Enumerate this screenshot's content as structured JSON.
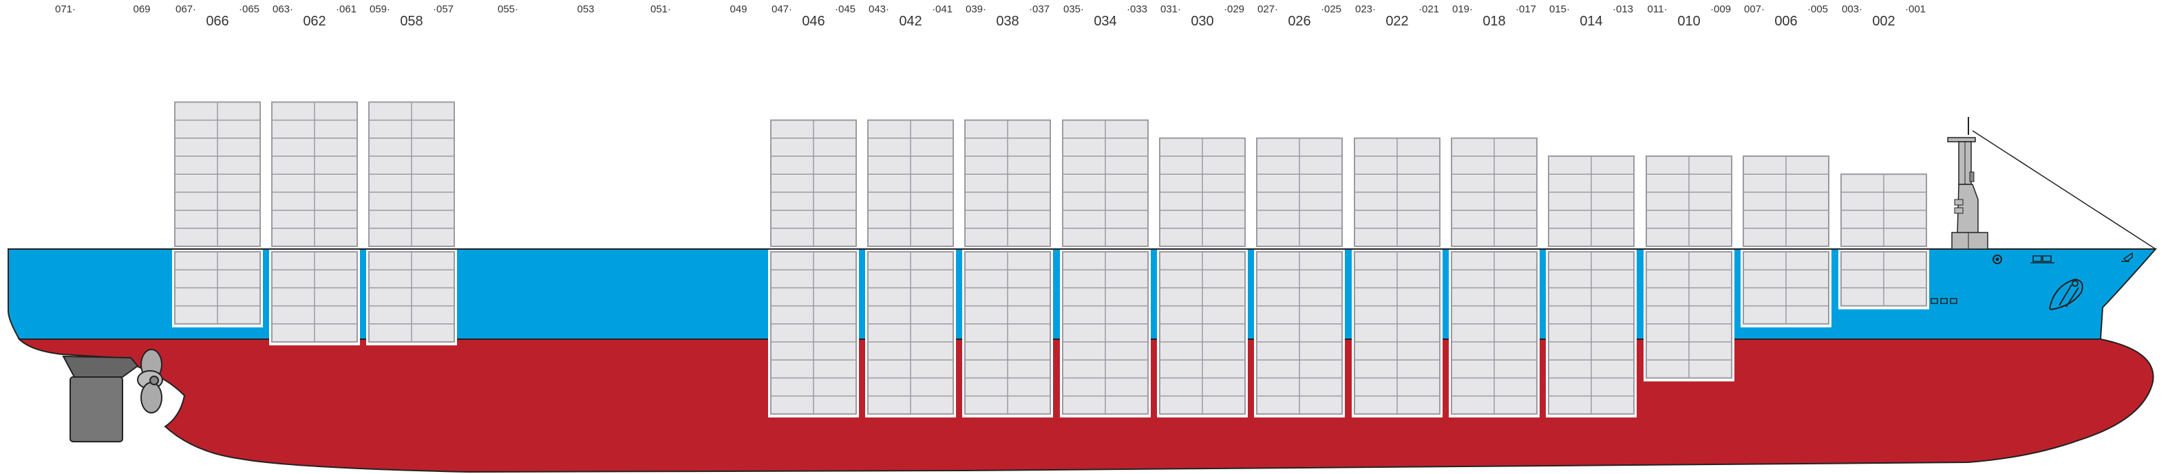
{
  "colors": {
    "hull_top": "#00a0e0",
    "hull_bottom": "#bc212b",
    "container_fill": "#e6e6e9",
    "container_line": "#9a9aa2",
    "outline": "#222222",
    "machinery": "#777777"
  },
  "bays": [
    {
      "id": "bay-066",
      "label": "066",
      "fore": "067",
      "aft": "065",
      "above_tiers": 8,
      "below_tiers": 4
    },
    {
      "id": "bay-062",
      "label": "062",
      "fore": "063",
      "aft": "061",
      "above_tiers": 8,
      "below_tiers": 5
    },
    {
      "id": "bay-058",
      "label": "058",
      "fore": "059",
      "aft": "057",
      "above_tiers": 8,
      "below_tiers": 5
    },
    {
      "id": "bay-046",
      "label": "046",
      "fore": "047",
      "aft": "045",
      "above_tiers": 7,
      "below_tiers": 9
    },
    {
      "id": "bay-042",
      "label": "042",
      "fore": "043",
      "aft": "041",
      "above_tiers": 7,
      "below_tiers": 9
    },
    {
      "id": "bay-038",
      "label": "038",
      "fore": "039",
      "aft": "037",
      "above_tiers": 7,
      "below_tiers": 9
    },
    {
      "id": "bay-034",
      "label": "034",
      "fore": "035",
      "aft": "033",
      "above_tiers": 7,
      "below_tiers": 9
    },
    {
      "id": "bay-030",
      "label": "030",
      "fore": "031",
      "aft": "029",
      "above_tiers": 6,
      "below_tiers": 9
    },
    {
      "id": "bay-026",
      "label": "026",
      "fore": "027",
      "aft": "025",
      "above_tiers": 6,
      "below_tiers": 9
    },
    {
      "id": "bay-022",
      "label": "022",
      "fore": "023",
      "aft": "021",
      "above_tiers": 6,
      "below_tiers": 9
    },
    {
      "id": "bay-018",
      "label": "018",
      "fore": "019",
      "aft": "017",
      "above_tiers": 6,
      "below_tiers": 9
    },
    {
      "id": "bay-014",
      "label": "014",
      "fore": "015",
      "aft": "013",
      "above_tiers": 5,
      "below_tiers": 9
    },
    {
      "id": "bay-010",
      "label": "010",
      "fore": "011",
      "aft": "009",
      "above_tiers": 5,
      "below_tiers": 7
    },
    {
      "id": "bay-006",
      "label": "006",
      "fore": "007",
      "aft": "005",
      "above_tiers": 5,
      "below_tiers": 4
    },
    {
      "id": "bay-002",
      "label": "002",
      "fore": "003",
      "aft": "001",
      "above_tiers": 4,
      "below_tiers": 3
    }
  ],
  "single_labels": [
    {
      "id": "bay-071",
      "label": "071"
    },
    {
      "id": "bay-069",
      "label": "069"
    },
    {
      "id": "bay-055",
      "label": "055"
    },
    {
      "id": "bay-053",
      "label": "053"
    },
    {
      "id": "bay-051",
      "label": "051"
    },
    {
      "id": "bay-049",
      "label": "049"
    }
  ]
}
